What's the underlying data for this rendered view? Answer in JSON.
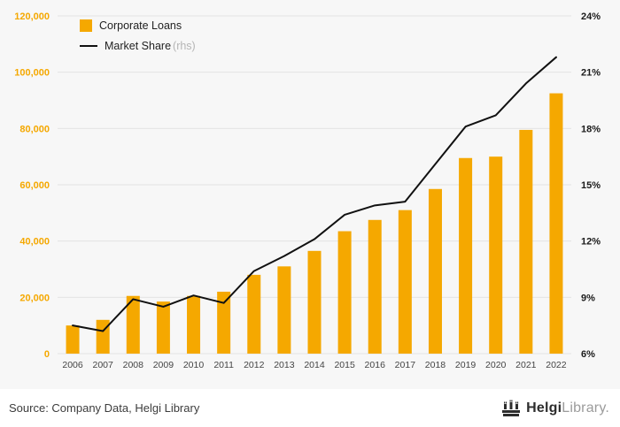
{
  "legend": {
    "bars_label": "Corporate Loans",
    "line_label": "Market Share",
    "line_suffix": "(rhs)"
  },
  "footer": {
    "source": "Source: Company Data, Helgi Library",
    "logo_main": "Helgi",
    "logo_secondary": "Library",
    "logo_dot": "."
  },
  "colors": {
    "bar": "#F5A800",
    "line": "#111111",
    "left_axis_labels": "#F5A800",
    "right_axis_labels": "#1a1a1a",
    "x_axis_labels": "#444444",
    "background": "#f7f7f7",
    "grid": "#e3e3e3"
  },
  "chart_data": {
    "type": "combo",
    "categories": [
      "2006",
      "2007",
      "2008",
      "2009",
      "2010",
      "2011",
      "2012",
      "2013",
      "2014",
      "2015",
      "2016",
      "2017",
      "2018",
      "2019",
      "2020",
      "2021",
      "2022"
    ],
    "series": [
      {
        "name": "Corporate Loans",
        "type": "bar",
        "axis": "left",
        "values": [
          10000,
          12000,
          20500,
          18500,
          20500,
          22000,
          28000,
          31000,
          36500,
          43500,
          47500,
          51000,
          58500,
          69500,
          70000,
          79500,
          92500
        ]
      },
      {
        "name": "Market Share",
        "type": "line",
        "axis": "right",
        "values": [
          7.5,
          7.2,
          8.9,
          8.5,
          9.1,
          8.7,
          10.4,
          11.2,
          12.1,
          13.4,
          13.9,
          14.1,
          16.1,
          18.1,
          18.7,
          20.4,
          21.8
        ]
      }
    ],
    "left_axis": {
      "min": 0,
      "max": 120000,
      "step": 20000,
      "tick_labels": [
        "0",
        "20,000",
        "40,000",
        "60,000",
        "80,000",
        "100,000",
        "120,000"
      ]
    },
    "right_axis": {
      "min": 6,
      "max": 24,
      "step": 3,
      "tick_labels": [
        "6%",
        "9%",
        "12%",
        "15%",
        "18%",
        "21%",
        "24%"
      ]
    },
    "grid": true,
    "legend_position": "top-left"
  }
}
